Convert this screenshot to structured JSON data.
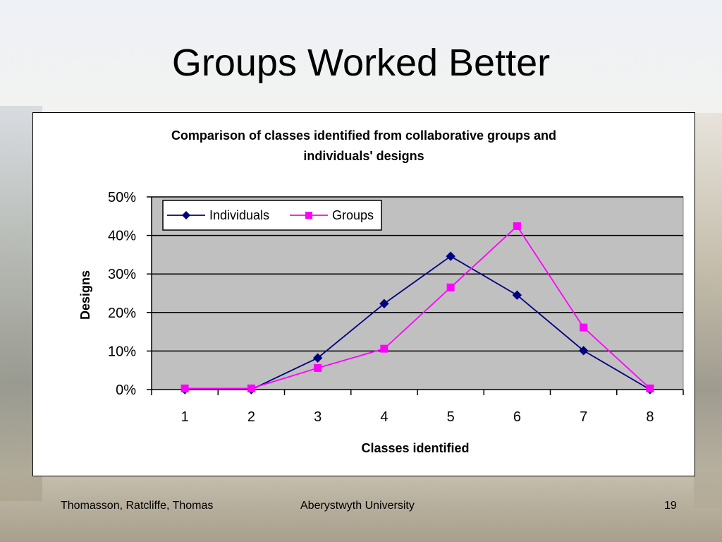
{
  "slide": {
    "title": "Groups Worked Better",
    "footer_left": "Thomasson, Ratcliffe, Thomas",
    "footer_center": "Aberystwyth University",
    "page_number": "19"
  },
  "chart_data": {
    "type": "line",
    "title_line1": "Comparison of classes identified from collaborative groups and",
    "title_line2": "individuals' designs",
    "xlabel": "Classes identified",
    "ylabel": "Designs",
    "categories": [
      "1",
      "2",
      "3",
      "4",
      "5",
      "6",
      "7",
      "8"
    ],
    "ylim": [
      0,
      50
    ],
    "yticks": [
      0,
      10,
      20,
      30,
      40,
      50
    ],
    "ytick_labels": [
      "0%",
      "10%",
      "20%",
      "30%",
      "40%",
      "50%"
    ],
    "grid": true,
    "plot_background": "#c0c0c0",
    "legend_position": "top-left",
    "series": [
      {
        "name": "Individuals",
        "color": "#000080",
        "marker": "diamond",
        "values": [
          0,
          0,
          8.2,
          22.3,
          34.6,
          24.5,
          10.1,
          0
        ]
      },
      {
        "name": "Groups",
        "color": "#ff00ff",
        "marker": "square",
        "values": [
          0.3,
          0.3,
          5.6,
          10.6,
          26.5,
          42.4,
          16.1,
          0.3
        ]
      }
    ]
  }
}
